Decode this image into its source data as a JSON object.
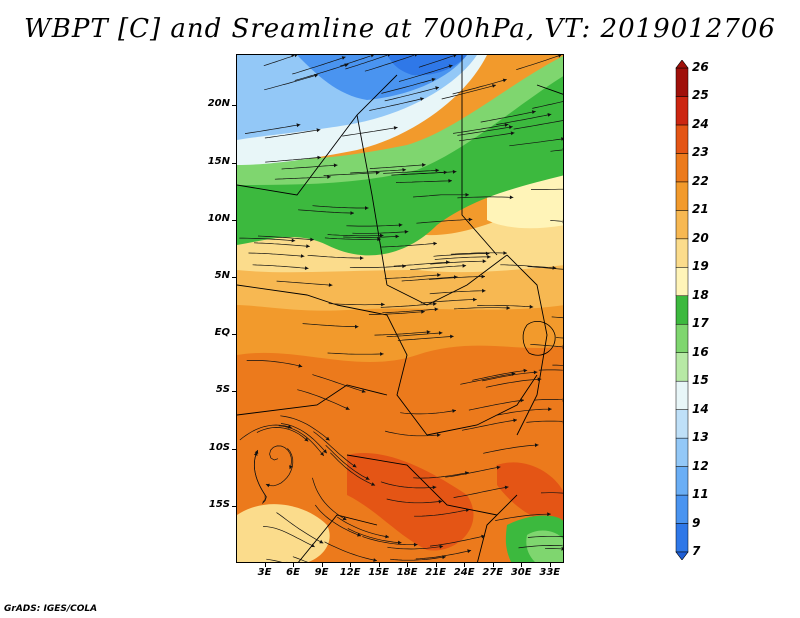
{
  "title": "WBPT [C] and Sreamline at 700hPa, VT: 2019012706",
  "credit": "GrADS: IGES/COLA",
  "lat_labels": [
    "20N",
    "15N",
    "10N",
    "5N",
    "EQ",
    "5S",
    "10S",
    "15S"
  ],
  "lat_values": [
    20,
    15,
    10,
    5,
    0,
    -5,
    -10,
    -15
  ],
  "lon_labels": [
    "3E",
    "6E",
    "9E",
    "12E",
    "15E",
    "18E",
    "21E",
    "24E",
    "27E",
    "30E",
    "33E"
  ],
  "lon_values": [
    3,
    6,
    9,
    12,
    15,
    18,
    21,
    24,
    27,
    30,
    33
  ],
  "map_extent": {
    "lon": [
      0,
      34.5
    ],
    "lat": [
      -20,
      24.5
    ]
  },
  "colorbar": {
    "labels": [
      "7",
      "9",
      "11",
      "12",
      "13",
      "14",
      "15",
      "16",
      "17",
      "18",
      "19",
      "20",
      "21",
      "22",
      "23",
      "24",
      "25",
      "26"
    ],
    "colors": [
      "#1f5fd6",
      "#2f78e8",
      "#4a94f0",
      "#6aaef5",
      "#93c8f7",
      "#bfe0f8",
      "#e8f6f8",
      "#b7e9a5",
      "#7fd66f",
      "#3cb93e",
      "#fff4b8",
      "#fbdc8c",
      "#f7b852",
      "#f29a2c",
      "#ec7a1c",
      "#e45515",
      "#cc2611",
      "#a0100a"
    ]
  },
  "wbpt_bands": [
    {
      "name": "blue-north",
      "color": "#2f78e8"
    },
    {
      "name": "light-blue",
      "color": "#93c8f7"
    },
    {
      "name": "pale",
      "color": "#e8f6f8"
    },
    {
      "name": "green",
      "color": "#3cb93e"
    },
    {
      "name": "light-green",
      "color": "#7fd66f"
    },
    {
      "name": "yellow",
      "color": "#fbdc8c"
    },
    {
      "name": "light-orange",
      "color": "#f7b852"
    },
    {
      "name": "orange",
      "color": "#f29a2c"
    },
    {
      "name": "dark-orange",
      "color": "#ec7a1c"
    },
    {
      "name": "red-orange",
      "color": "#e45515"
    }
  ]
}
